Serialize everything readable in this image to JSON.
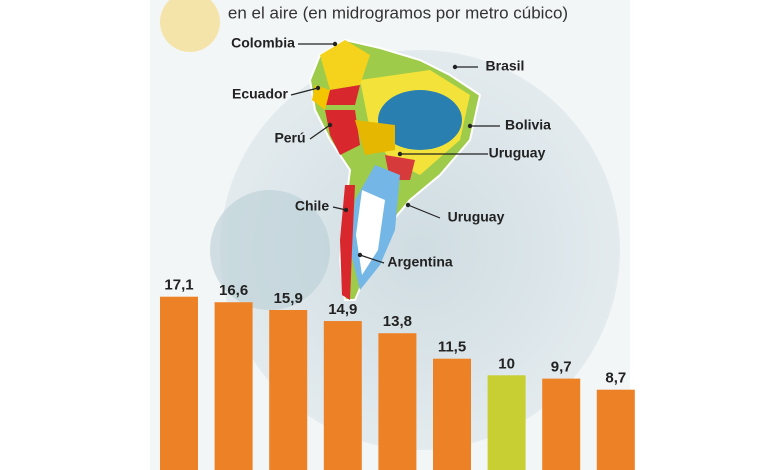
{
  "chart_data": {
    "type": "bar",
    "subtitle": "en el aire (en midrogramos por metro cúbico)",
    "categories": [
      null,
      null,
      null,
      null,
      null,
      null,
      null,
      null,
      null
    ],
    "values": [
      17.1,
      16.6,
      15.9,
      14.9,
      13.8,
      11.5,
      10,
      9.7,
      8.7
    ],
    "value_labels": [
      "17,1",
      "16,6",
      "15,9",
      "14,9",
      "13,8",
      "11,5",
      "10",
      "9,7",
      "8,7"
    ],
    "colors": [
      "#ec8126",
      "#ec8126",
      "#ec8126",
      "#ec8126",
      "#ec8126",
      "#ec8126",
      "#c7cf33",
      "#ec8126",
      "#ec8126"
    ],
    "annotations": [
      "Colombia",
      "Brasil",
      "Ecuador",
      "Bolivia",
      "Perú",
      "Uruguay",
      "Uruguay",
      "Chile",
      "Argentina"
    ]
  }
}
